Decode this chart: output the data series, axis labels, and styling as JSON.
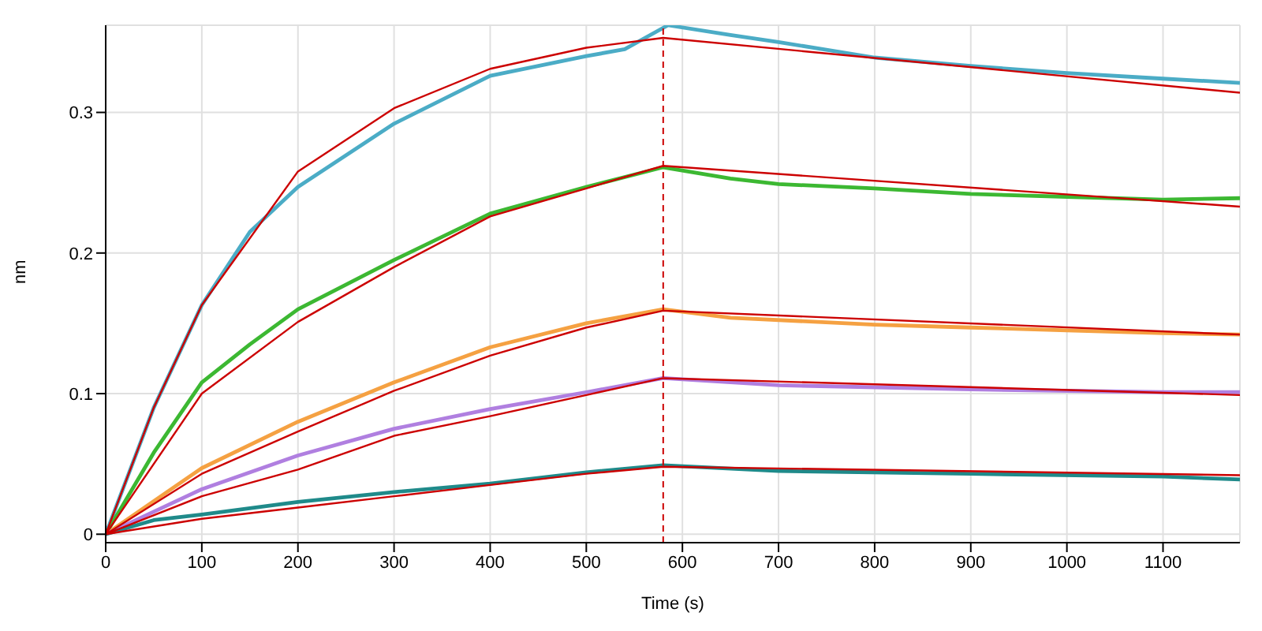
{
  "chart_data": {
    "type": "line",
    "xlabel": "Time (s)",
    "ylabel": "nm",
    "xlim": [
      0,
      1180
    ],
    "xticks": [
      0,
      100,
      200,
      300,
      400,
      500,
      600,
      700,
      800,
      900,
      1000,
      1100
    ],
    "ylim": [
      -0.006,
      0.362
    ],
    "yticks": [
      0,
      0.1,
      0.2,
      0.3
    ],
    "grid": true,
    "marker": "none",
    "line_style": "solid",
    "ref_lines": [
      {
        "axis": "x",
        "value": 580,
        "color": "#cc0000",
        "line_style": "dashed"
      }
    ],
    "series": [
      {
        "color": "#4bacc6",
        "x": [
          0,
          50,
          100,
          150,
          200,
          300,
          400,
          500,
          540,
          585,
          650,
          700,
          800,
          900,
          1000,
          1100,
          1180
        ],
        "values": [
          0,
          0.09,
          0.163,
          0.215,
          0.247,
          0.292,
          0.326,
          0.34,
          0.345,
          0.362,
          0.355,
          0.35,
          0.339,
          0.333,
          0.328,
          0.324,
          0.321
        ]
      },
      {
        "color": "#3cb832",
        "x": [
          0,
          50,
          100,
          150,
          200,
          300,
          400,
          500,
          580,
          650,
          700,
          800,
          900,
          1000,
          1100,
          1180
        ],
        "values": [
          0,
          0.058,
          0.108,
          0.135,
          0.16,
          0.195,
          0.228,
          0.247,
          0.261,
          0.253,
          0.249,
          0.246,
          0.242,
          0.24,
          0.238,
          0.239
        ]
      },
      {
        "color": "#f5a142",
        "x": [
          0,
          100,
          200,
          300,
          400,
          500,
          580,
          650,
          800,
          900,
          1000,
          1100,
          1180
        ],
        "values": [
          0,
          0.047,
          0.08,
          0.108,
          0.133,
          0.15,
          0.16,
          0.154,
          0.149,
          0.147,
          0.145,
          0.143,
          0.142
        ]
      },
      {
        "color": "#b07fe0",
        "x": [
          0,
          100,
          200,
          300,
          400,
          500,
          580,
          700,
          900,
          1100,
          1180
        ],
        "values": [
          0,
          0.032,
          0.056,
          0.075,
          0.089,
          0.101,
          0.111,
          0.106,
          0.103,
          0.101,
          0.101
        ]
      },
      {
        "color": "#1f8a8a",
        "x": [
          0,
          50,
          100,
          200,
          300,
          400,
          500,
          580,
          700,
          900,
          1100,
          1180
        ],
        "values": [
          0,
          0.01,
          0.014,
          0.023,
          0.03,
          0.036,
          0.044,
          0.049,
          0.045,
          0.043,
          0.041,
          0.039
        ]
      },
      {
        "color": "#cc0000",
        "x": [
          0,
          50,
          100,
          200,
          300,
          400,
          500,
          580,
          1180
        ],
        "values": [
          0,
          0.09,
          0.163,
          0.258,
          0.303,
          0.331,
          0.346,
          0.353,
          0.314
        ]
      },
      {
        "color": "#cc0000",
        "x": [
          0,
          100,
          200,
          300,
          400,
          500,
          580,
          1180
        ],
        "values": [
          0,
          0.1,
          0.151,
          0.19,
          0.226,
          0.246,
          0.262,
          0.233
        ]
      },
      {
        "color": "#cc0000",
        "x": [
          0,
          100,
          200,
          300,
          400,
          500,
          580,
          1180
        ],
        "values": [
          0,
          0.043,
          0.073,
          0.102,
          0.127,
          0.147,
          0.159,
          0.142
        ]
      },
      {
        "color": "#cc0000",
        "x": [
          0,
          100,
          200,
          300,
          400,
          500,
          580,
          1180
        ],
        "values": [
          0,
          0.027,
          0.046,
          0.07,
          0.084,
          0.099,
          0.111,
          0.099
        ]
      },
      {
        "color": "#cc0000",
        "x": [
          0,
          100,
          200,
          300,
          400,
          500,
          580,
          1180
        ],
        "values": [
          0,
          0.011,
          0.019,
          0.027,
          0.035,
          0.043,
          0.048,
          0.042
        ]
      }
    ]
  }
}
